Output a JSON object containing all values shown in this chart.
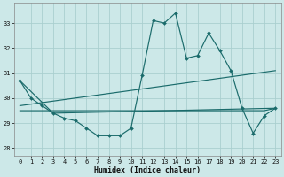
{
  "xlabel": "Humidex (Indice chaleur)",
  "background_color": "#cce8e8",
  "grid_color": "#aacfcf",
  "line_color": "#1a6b6b",
  "x": [
    0,
    1,
    2,
    3,
    4,
    5,
    6,
    7,
    8,
    9,
    10,
    11,
    12,
    13,
    14,
    15,
    16,
    17,
    18,
    19,
    20,
    21,
    22,
    23
  ],
  "y_main": [
    30.7,
    30.0,
    29.7,
    29.4,
    29.2,
    29.1,
    28.8,
    28.5,
    28.5,
    28.5,
    28.8,
    30.9,
    33.1,
    33.0,
    33.4,
    31.6,
    31.7,
    32.6,
    31.9,
    31.1,
    29.6,
    28.6,
    29.3,
    29.6
  ],
  "y_flat": [
    29.5,
    29.5,
    29.5,
    29.5,
    29.5,
    29.5,
    29.5,
    29.5,
    29.5,
    29.5,
    29.5,
    29.5,
    29.5,
    29.5,
    29.5,
    29.5,
    29.5,
    29.5,
    29.5,
    29.5,
    29.5,
    29.5,
    29.5,
    29.6
  ],
  "trend1_x": [
    0,
    23
  ],
  "trend1_y": [
    29.7,
    31.1
  ],
  "trend2_x": [
    0,
    3,
    23
  ],
  "trend2_y": [
    30.7,
    29.4,
    29.6
  ],
  "ylim": [
    27.7,
    33.8
  ],
  "yticks": [
    28,
    29,
    30,
    31,
    32,
    33
  ],
  "xticks": [
    0,
    1,
    2,
    3,
    4,
    5,
    6,
    7,
    8,
    9,
    10,
    11,
    12,
    13,
    14,
    15,
    16,
    17,
    18,
    19,
    20,
    21,
    22,
    23
  ]
}
